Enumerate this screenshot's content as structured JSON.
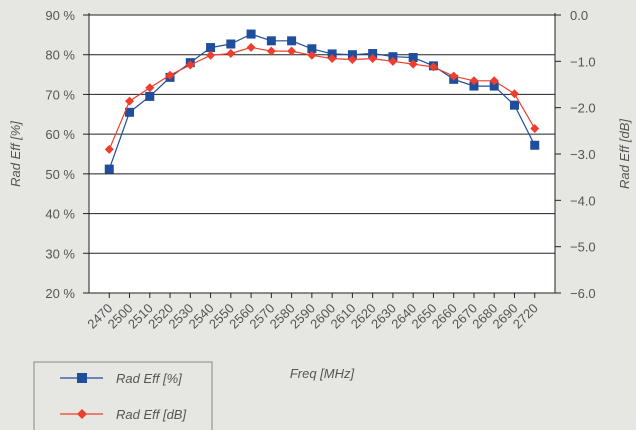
{
  "chart_data": {
    "type": "line",
    "xlabel": "Freq [MHz]",
    "ylabel_left": "Rad Eff [%]",
    "ylabel_right": "Rad Eff [dB]",
    "x": [
      2470,
      2500,
      2510,
      2520,
      2530,
      2540,
      2550,
      2560,
      2570,
      2580,
      2590,
      2600,
      2610,
      2620,
      2630,
      2640,
      2650,
      2660,
      2670,
      2680,
      2690,
      2720
    ],
    "x_tick_labels": [
      "2470",
      "2500",
      "2510",
      "2520",
      "2530",
      "2540",
      "2550",
      "2560",
      "2570",
      "2580",
      "2590",
      "2600",
      "2610",
      "2620",
      "2630",
      "2640",
      "2650",
      "2660",
      "2670",
      "2680",
      "2690",
      "2720"
    ],
    "ylim_left": [
      20,
      90
    ],
    "yticks_left": [
      "20 %",
      "30 %",
      "40 %",
      "50 %",
      "60 %",
      "70 %",
      "80 %",
      "90 %"
    ],
    "ylim_right": [
      -6.0,
      0.0
    ],
    "yticks_right": [
      "0.0",
      "-1.0",
      "-2.0",
      "-3.0",
      "-4.0",
      "-5.0",
      "-6.0"
    ],
    "grid": "horizontal",
    "legend_placement": "bottom-left",
    "series": [
      {
        "name": "Rad Eff [%]",
        "axis": "left",
        "marker": "square",
        "color": "#1f4e9c",
        "values": [
          51.2,
          65.5,
          69.5,
          74.3,
          78.0,
          81.8,
          82.7,
          85.2,
          83.5,
          83.5,
          81.5,
          80.2,
          80.0,
          80.3,
          79.5,
          79.3,
          77.2,
          73.8,
          72.1,
          72.1,
          67.3,
          57.2
        ]
      },
      {
        "name": "Rad Eff [dB]",
        "axis": "right",
        "marker": "diamond",
        "color": "#ee3e2d",
        "values": [
          -2.9,
          -1.86,
          -1.57,
          -1.3,
          -1.08,
          -0.87,
          -0.83,
          -0.7,
          -0.78,
          -0.78,
          -0.87,
          -0.94,
          -0.96,
          -0.94,
          -1.0,
          -1.06,
          -1.12,
          -1.32,
          -1.42,
          -1.42,
          -1.7,
          -2.45
        ]
      }
    ]
  }
}
